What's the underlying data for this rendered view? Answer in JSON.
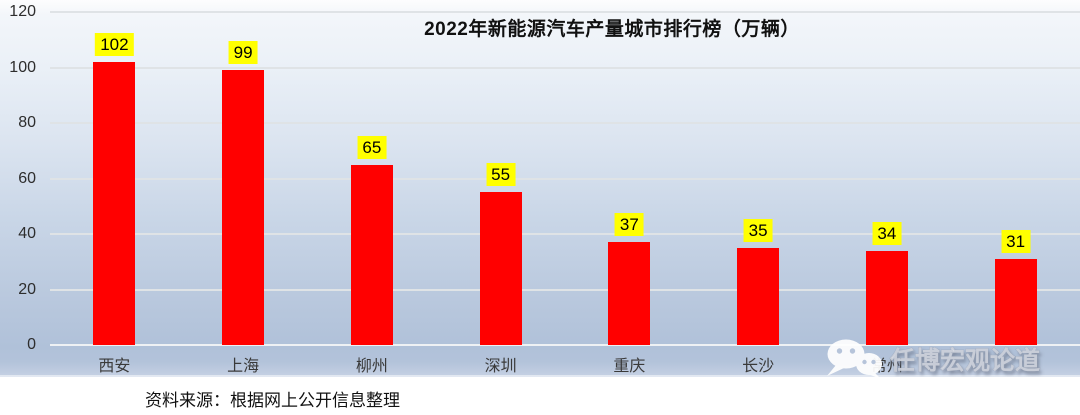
{
  "source_note": "资料来源：根据网上公开信息整理",
  "watermark": {
    "icon": "wechat-icon",
    "text": "任博宏观论道"
  },
  "chart_data": {
    "type": "bar",
    "title": "2022年新能源汽车产量城市排行榜（万辆）",
    "categories": [
      "西安",
      "上海",
      "柳州",
      "深圳",
      "重庆",
      "长沙",
      "常州",
      ""
    ],
    "values": [
      102,
      99,
      65,
      55,
      37,
      35,
      34,
      31
    ],
    "xlabel": "",
    "ylabel": "",
    "ylim": [
      0,
      120
    ],
    "yticks": [
      0,
      20,
      40,
      60,
      80,
      100,
      120
    ],
    "grid": true,
    "legend": false,
    "bar_color": "#FF0000",
    "data_label_bg": "#FFFF00",
    "data_label_color": "#000000"
  }
}
